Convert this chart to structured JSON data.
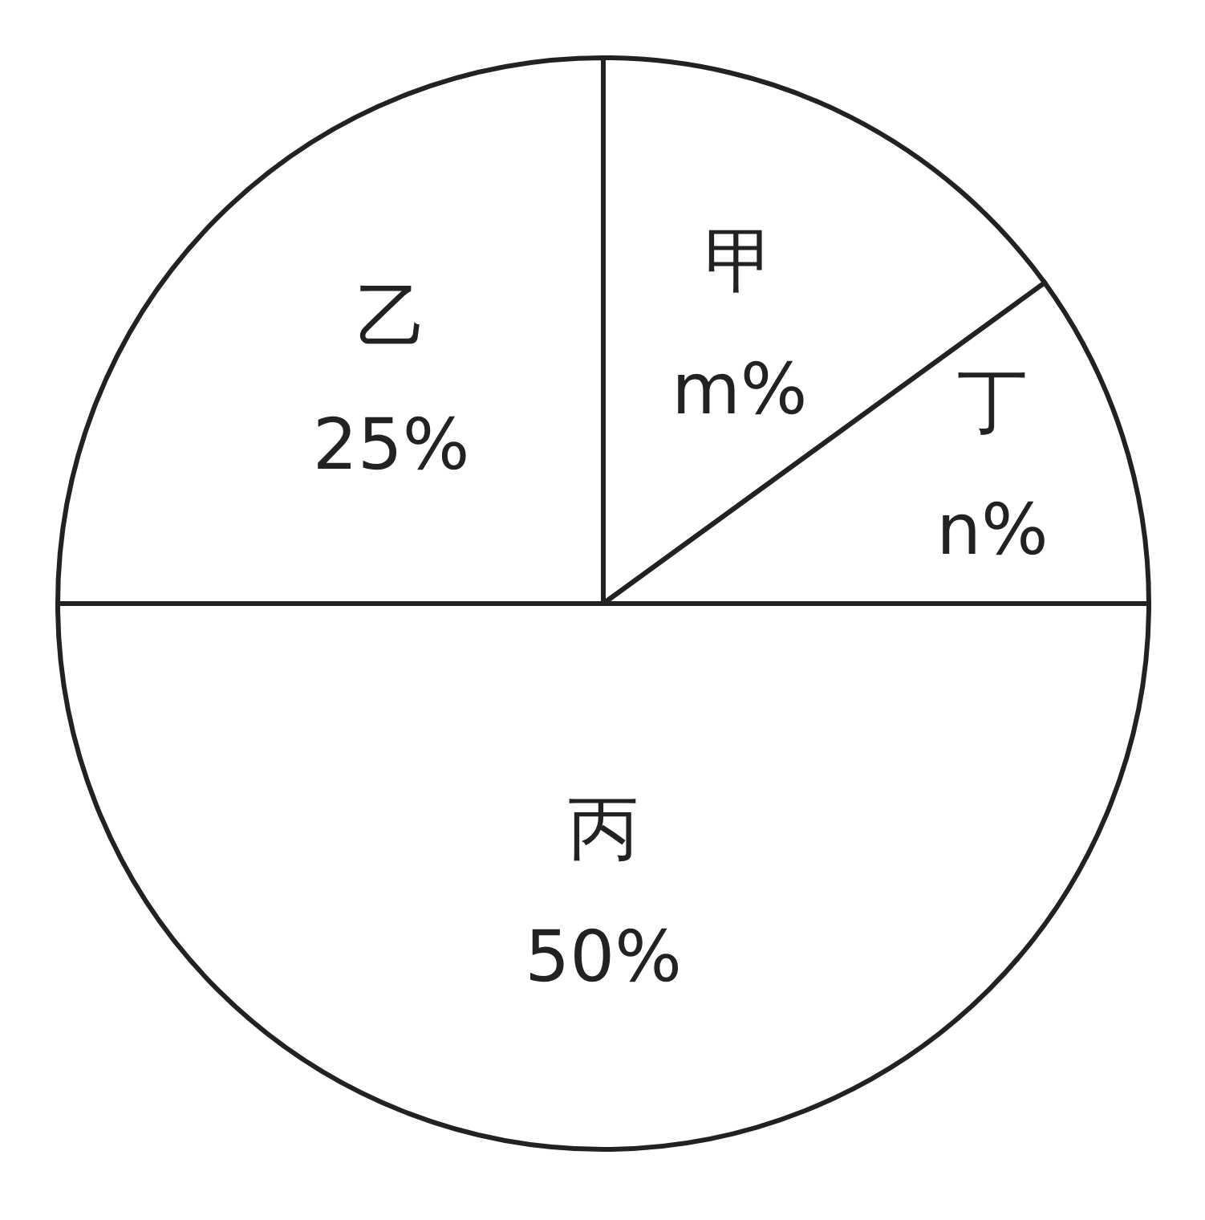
{
  "chart_data": {
    "type": "pie",
    "categories": [
      "甲",
      "丁",
      "丙",
      "乙"
    ],
    "values": [
      15,
      10,
      50,
      25
    ],
    "value_labels": [
      "m%",
      "n%",
      "50%",
      "25%"
    ],
    "colors": [
      "#ffffff",
      "#ffffff",
      "#ffffff",
      "#ffffff"
    ]
  }
}
